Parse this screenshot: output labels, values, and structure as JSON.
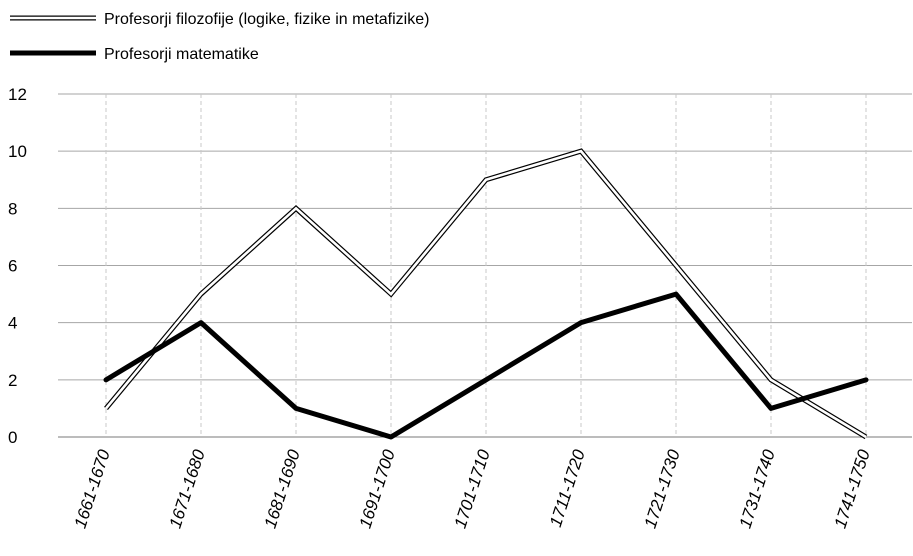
{
  "chart_data": {
    "type": "line",
    "categories": [
      "1661-1670",
      "1671-1680",
      "1681-1690",
      "1691-1700",
      "1701-1710",
      "1711-1720",
      "1721-1730",
      "1731-1740",
      "1741-1750"
    ],
    "series": [
      {
        "name": "Profesorji filozofije (logike, fizike in metafizike)",
        "style": "double-outline",
        "color": "#000000",
        "values": [
          1,
          5,
          8,
          5,
          9,
          10,
          6,
          2,
          0
        ]
      },
      {
        "name": "Profesorji matematike",
        "style": "thick-solid",
        "color": "#000000",
        "values": [
          2,
          4,
          1,
          0,
          2,
          4,
          5,
          1,
          2
        ]
      }
    ],
    "y_ticks": [
      "0",
      "2",
      "4",
      "6",
      "8",
      "10",
      "12"
    ],
    "ylim": [
      0,
      12
    ],
    "grid": {
      "horizontal": true,
      "vertical": "dashed"
    },
    "legend": "top-left"
  }
}
